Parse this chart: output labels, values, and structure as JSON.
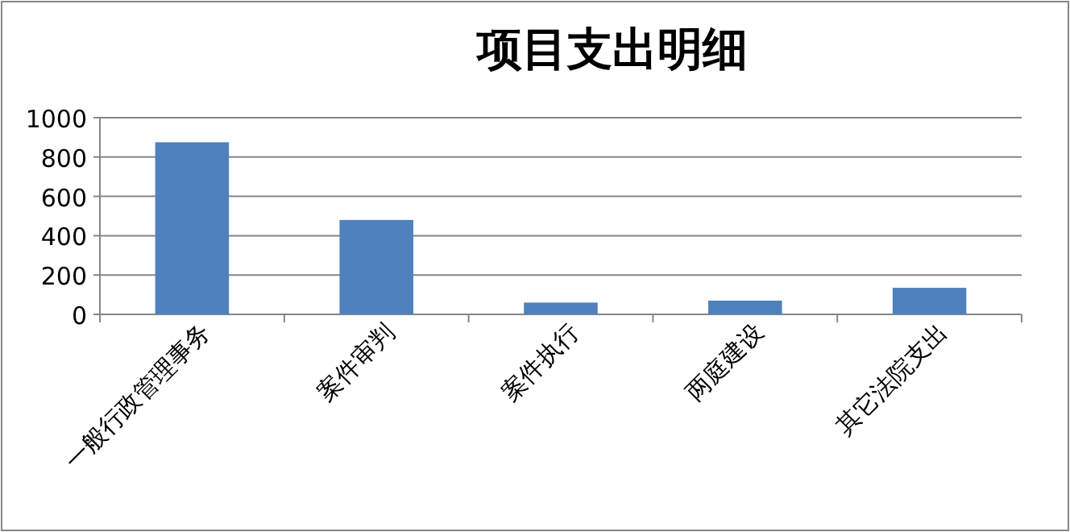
{
  "chart_data": {
    "type": "bar",
    "title": "项目支出明细",
    "categories": [
      "一般行政管理事务",
      "案件审判",
      "案件执行",
      "两庭建设",
      "其它法院支出"
    ],
    "values": [
      875,
      480,
      60,
      70,
      135
    ],
    "color": "#4f81bd",
    "ylim": [
      0,
      1000
    ],
    "yticks": [
      0,
      200,
      400,
      600,
      800,
      1000
    ],
    "grid": "y",
    "legend": false
  }
}
